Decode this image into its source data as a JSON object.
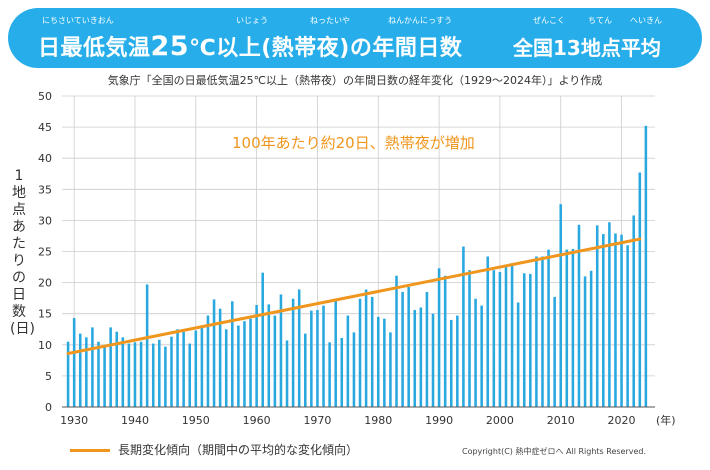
{
  "banner": {
    "title_part1": "日最低気温",
    "title_big": "25",
    "title_part2": "℃以上(熱帯夜)の年間日数",
    "subtitle": "全国13地点平均",
    "ruby": [
      "にちさいていきおん",
      "いじょう",
      "ねったいや",
      "ねんかんにっすう",
      "ぜんこく",
      "ちてん",
      "へいきん"
    ]
  },
  "source": "気象庁「全国の日最低気温25℃以上（熱帯夜）の年間日数の経年変化（1929〜2024年）」より作成",
  "legend": {
    "label": "長期変化傾向（期間中の平均的な変化傾向）"
  },
  "copyright": "Copyright(C) 熱中症ゼロへ All Rights Reserved.",
  "colors": {
    "banner": "#27aeea",
    "bar": "#29a8e0",
    "trend": "#f0961e",
    "annotation": "#f0961e"
  },
  "chart_data": {
    "type": "bar",
    "title": "日最低気温25℃以上(熱帯夜)の年間日数 全国13地点平均",
    "xlabel": "(年)",
    "ylabel": "1地点あたりの日数(日)",
    "ylim": [
      0,
      50
    ],
    "yticks": [
      "0",
      "5",
      "10",
      "15",
      "20",
      "25",
      "30",
      "35",
      "40",
      "45",
      "50"
    ],
    "xticks": [
      "1930",
      "1940",
      "1950",
      "1960",
      "1970",
      "1980",
      "1990",
      "2000",
      "2010",
      "2020"
    ],
    "x_unit_label": "(年)",
    "grid": true,
    "annotation": "100年あたり約20日、熱帯夜が増加",
    "years": [
      1929,
      1930,
      1931,
      1932,
      1933,
      1934,
      1935,
      1936,
      1937,
      1938,
      1939,
      1940,
      1941,
      1942,
      1943,
      1944,
      1945,
      1946,
      1947,
      1948,
      1949,
      1950,
      1951,
      1952,
      1953,
      1954,
      1955,
      1956,
      1957,
      1958,
      1959,
      1960,
      1961,
      1962,
      1963,
      1964,
      1965,
      1966,
      1967,
      1968,
      1969,
      1970,
      1971,
      1972,
      1973,
      1974,
      1975,
      1976,
      1977,
      1978,
      1979,
      1980,
      1981,
      1982,
      1983,
      1984,
      1985,
      1986,
      1987,
      1988,
      1989,
      1990,
      1991,
      1992,
      1993,
      1994,
      1995,
      1996,
      1997,
      1998,
      1999,
      2000,
      2001,
      2002,
      2003,
      2004,
      2005,
      2006,
      2007,
      2008,
      2009,
      2010,
      2011,
      2012,
      2013,
      2014,
      2015,
      2016,
      2017,
      2018,
      2019,
      2020,
      2021,
      2022,
      2023,
      2024
    ],
    "values": [
      10.5,
      14.3,
      11.8,
      11.2,
      12.8,
      10.5,
      10.0,
      12.8,
      12.1,
      11.2,
      10.2,
      10.4,
      10.5,
      19.7,
      10.2,
      10.8,
      9.7,
      11.3,
      12.5,
      12.1,
      10.2,
      12.3,
      12.8,
      14.7,
      17.3,
      15.8,
      12.5,
      17.0,
      13.1,
      13.8,
      14.2,
      16.4,
      21.6,
      16.5,
      14.7,
      18.1,
      10.7,
      17.4,
      18.9,
      11.8,
      15.5,
      15.6,
      16.3,
      10.4,
      17.4,
      11.1,
      14.7,
      12.0,
      17.4,
      18.9,
      17.7,
      14.5,
      14.2,
      12.0,
      21.1,
      18.5,
      19.3,
      15.6,
      16.0,
      18.5,
      15.0,
      22.3,
      21.1,
      14.0,
      14.7,
      25.8,
      22.0,
      17.4,
      16.3,
      24.2,
      22.0,
      21.7,
      22.9,
      23.1,
      16.8,
      21.5,
      21.4,
      24.2,
      24.2,
      25.3,
      17.7,
      32.6,
      25.3,
      25.4,
      29.3,
      21.0,
      21.9,
      29.2,
      27.8,
      29.7,
      27.9,
      27.7,
      26.0,
      30.8,
      37.7,
      45.2
    ],
    "trend": {
      "label": "長期変化傾向（期間中の平均的な変化傾向）",
      "start_year": 1929,
      "start_value": 8.6,
      "end_year": 2023,
      "end_value": 27.0
    }
  }
}
